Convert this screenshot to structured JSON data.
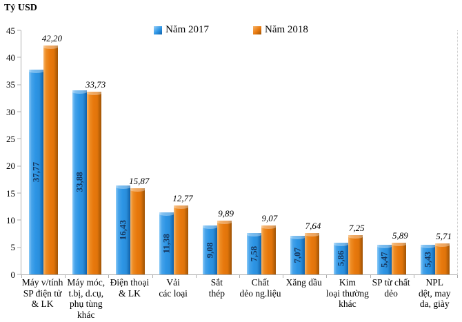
{
  "title": "Tỷ USD",
  "legend": {
    "items": [
      {
        "label": "Năm 2017",
        "color": "#2d95e5"
      },
      {
        "label": "Năm 2018",
        "color": "#e8790d"
      }
    ]
  },
  "colors": {
    "bar_2017": "#2d95e5",
    "bar_2017_dark": "#1061a9",
    "bar_2018": "#e8790d",
    "bar_2018_dark": "#9e5305",
    "in_bar_label": "#17365d",
    "axis": "#adadad"
  },
  "chart_data": {
    "type": "bar",
    "title": "Tỷ USD",
    "ylabel": "Tỷ USD",
    "xlabel": "",
    "ylim": [
      0,
      45
    ],
    "yticks": [
      0,
      5,
      10,
      15,
      20,
      25,
      30,
      35,
      40,
      45
    ],
    "grid": false,
    "legend_position": "top",
    "categories": [
      "Máy v/tính\nSP điện tử\n& LK",
      "Máy móc,\nt.bị, d.cụ,\nphụ tùng\nkhác",
      "Điện thoại\n& LK",
      "Vải\ncác loại",
      "Sắt\nthép",
      "Chất\ndẻo ng.liệu",
      "Xăng dầu",
      "Kim\nloại thường\nkhác",
      "SP từ chất\ndẻo",
      "NPL\ndệt, may\nda, giày"
    ],
    "series": [
      {
        "name": "Năm 2017",
        "values": [
          37.77,
          33.88,
          16.43,
          11.38,
          9.08,
          7.58,
          7.07,
          5.86,
          5.47,
          5.43
        ],
        "labels": [
          "37,77",
          "33,88",
          "16,43",
          "11,38",
          "9,08",
          "7,58",
          "7,07",
          "5,86",
          "5,47",
          "5,43"
        ],
        "label_placement": "inside-rotated"
      },
      {
        "name": "Năm 2018",
        "values": [
          42.2,
          33.73,
          15.87,
          12.77,
          9.89,
          9.07,
          7.64,
          7.25,
          5.89,
          5.71
        ],
        "labels": [
          "42,20",
          "33,73",
          "15,87",
          "12,77",
          "9,89",
          "9,07",
          "7,64",
          "7,25",
          "5,89",
          "5,71"
        ],
        "label_placement": "above-italic"
      }
    ]
  }
}
